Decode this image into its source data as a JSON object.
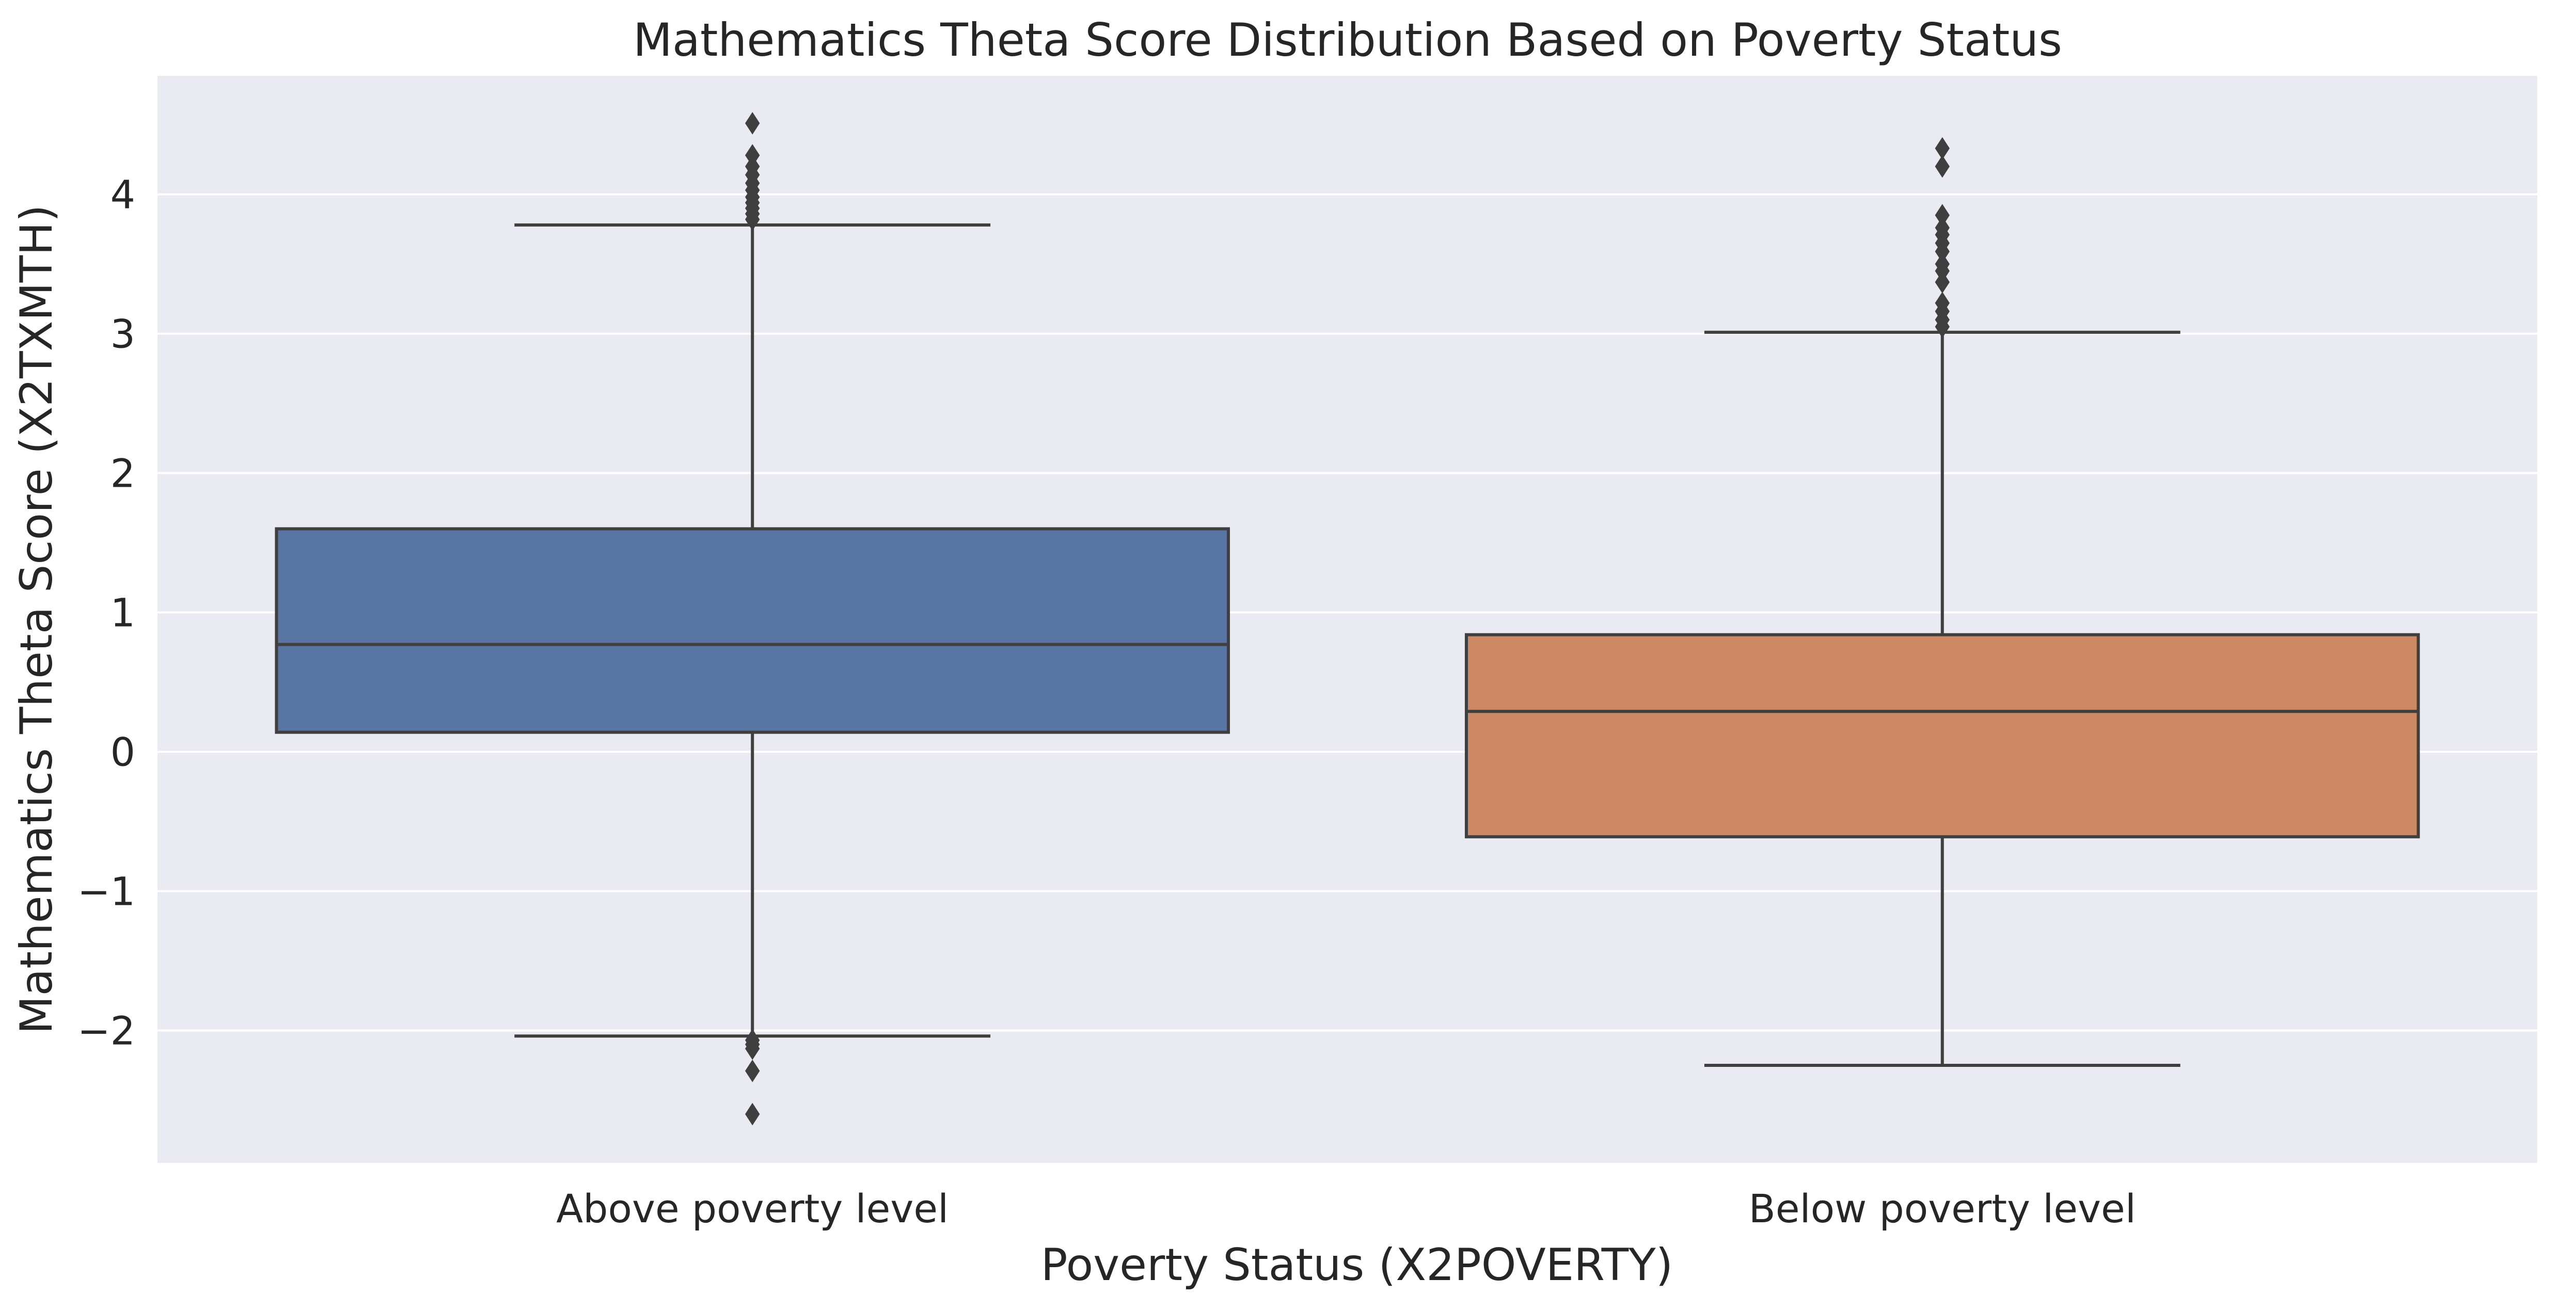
{
  "chart_data": {
    "type": "box",
    "title": "Mathematics Theta Score Distribution Based on Poverty Status",
    "xlabel": "Poverty Status (X2POVERTY)",
    "ylabel": "Mathematics Theta Score (X2TXMTH)",
    "ylim": [
      -2.95,
      4.85
    ],
    "yticks": [
      -2,
      -1,
      0,
      1,
      2,
      3,
      4
    ],
    "ytick_labels": [
      "−2",
      "−1",
      "0",
      "1",
      "2",
      "3",
      "4"
    ],
    "grid": true,
    "background_color": "#eaeaf2",
    "categories": [
      "Above poverty level",
      "Below poverty level"
    ],
    "boxes": [
      {
        "category": "Above poverty level",
        "color": "#5975a4",
        "whisker_low": -2.04,
        "q1": 0.14,
        "median": 0.77,
        "q3": 1.6,
        "whisker_high": 3.78,
        "fliers": [
          4.51,
          4.28,
          4.2,
          4.14,
          4.08,
          4.03,
          3.98,
          3.94,
          3.9,
          3.86,
          3.82,
          -2.07,
          -2.1,
          -2.13,
          -2.29,
          -2.6
        ]
      },
      {
        "category": "Below poverty level",
        "color": "#cc8963",
        "whisker_low": -2.25,
        "q1": -0.61,
        "median": 0.29,
        "q3": 0.84,
        "whisker_high": 3.01,
        "fliers": [
          4.33,
          4.2,
          3.85,
          3.76,
          3.71,
          3.65,
          3.59,
          3.5,
          3.45,
          3.37,
          3.22,
          3.16,
          3.1,
          3.05
        ]
      }
    ]
  }
}
